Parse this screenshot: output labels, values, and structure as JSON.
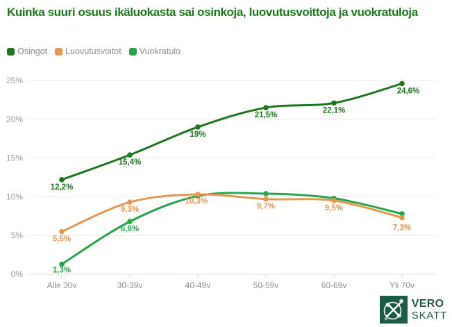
{
  "title": {
    "text": "Kuinka suuri osuus ikäluokasta sai osinkoja, luovutusvoittoja ja vuokratuloja",
    "color": "#1a7a1a"
  },
  "legend": {
    "text_color": "#8c8c8c",
    "items": [
      {
        "label": "Osingot",
        "color": "#1a7a1a"
      },
      {
        "label": "Luovutusvoitot",
        "color": "#e8974e"
      },
      {
        "label": "Vuokratulo",
        "color": "#24a847"
      }
    ]
  },
  "chart_data": {
    "type": "line",
    "categories": [
      "Alle 30v",
      "30-39v",
      "40-49v",
      "50-59v",
      "60-69v",
      "Yli 70v"
    ],
    "series": [
      {
        "name": "Osingot",
        "color": "#1a7a1a",
        "values": [
          12.2,
          15.4,
          19,
          21.5,
          22.1,
          24.6
        ],
        "labels": [
          "12,2%",
          "15,4%",
          "19%",
          "21,5%",
          "22,1%",
          "24,6%"
        ],
        "label_offsets": {
          "5": [
            9,
            14
          ]
        }
      },
      {
        "name": "Luovutusvoitot",
        "color": "#e8974e",
        "values": [
          5.5,
          9.3,
          10.3,
          9.7,
          9.5,
          7.3
        ],
        "labels": [
          "5,5%",
          "9,3%",
          "10,3%",
          "9,7%",
          "9,5%",
          "7,3%"
        ],
        "label_offsets": {
          "2": [
            -2,
            13
          ],
          "5": [
            0,
            18
          ]
        }
      },
      {
        "name": "Vuokratulo",
        "color": "#24a847",
        "values": [
          1.3,
          6.8,
          10.1,
          10.4,
          9.8,
          7.8
        ],
        "labels": [
          "1,3%",
          "6,8%",
          null,
          null,
          null,
          null
        ],
        "label_offsets": {
          "0": [
            0,
            12
          ]
        }
      }
    ],
    "y_ticks": [
      0,
      5,
      10,
      15,
      20,
      25
    ],
    "y_tick_labels": [
      "0%",
      "5%",
      "10%",
      "15%",
      "20%",
      "25%"
    ],
    "ylim": [
      0,
      25
    ],
    "grid": true,
    "legend_position": "top-left",
    "axis_label_color": "#8f8f8f",
    "grid_color": "#ebebeb"
  },
  "logo": {
    "brand_line1": "VERO",
    "brand_line2": "SKATT",
    "color": "#1d5c44",
    "emblem": "crossed-scepters-emblem"
  }
}
